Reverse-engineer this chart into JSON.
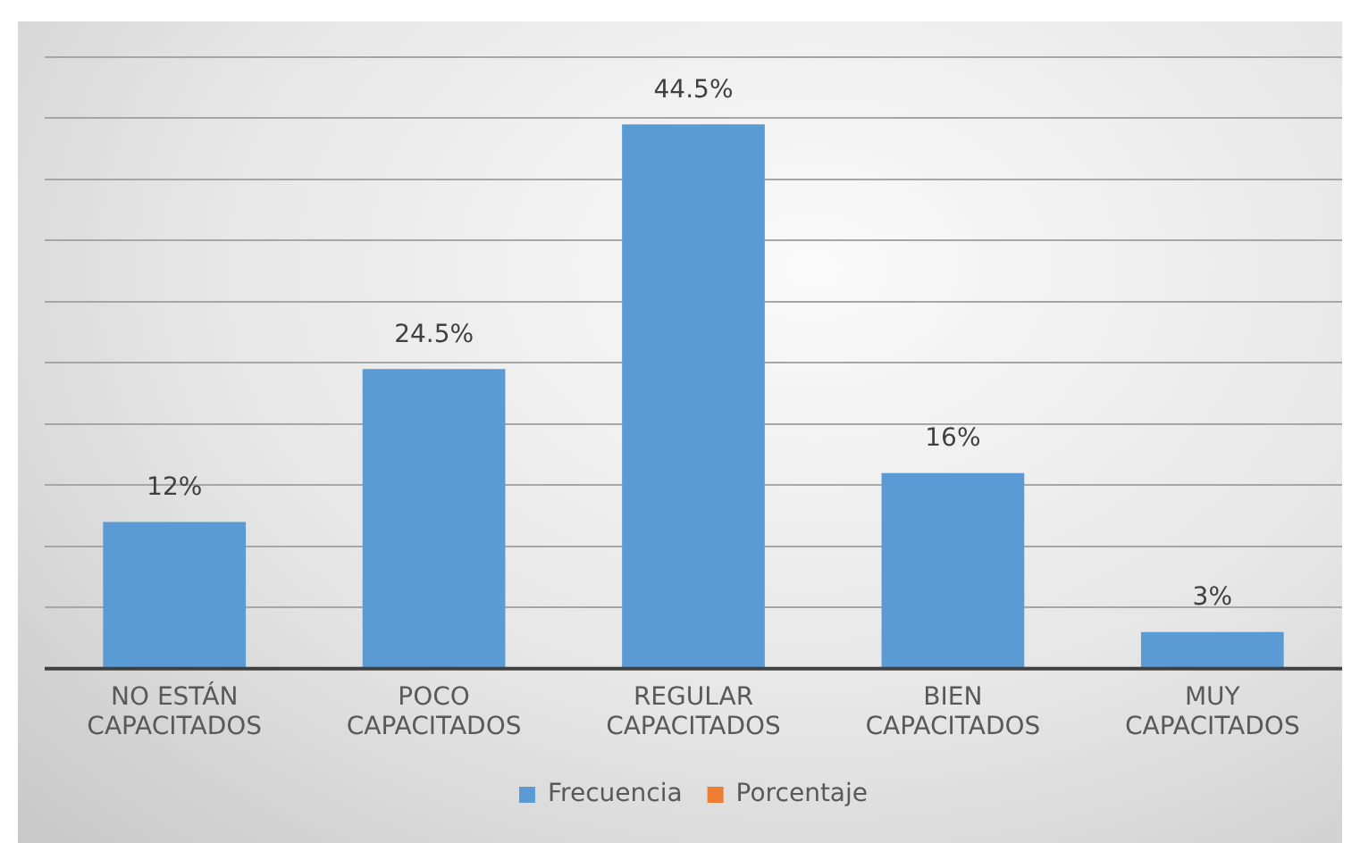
{
  "chart_data": {
    "type": "bar",
    "categories": [
      "NO ESTÁN CAPACITADOS",
      "POCO CAPACITADOS",
      "REGULAR CAPACITADOS",
      "BIEN CAPACITADOS",
      "MUY CAPACITADOS"
    ],
    "series": [
      {
        "name": "Frecuencia",
        "color": "#5b9bd5",
        "values": [
          12,
          24.5,
          44.5,
          16,
          3
        ],
        "value_labels": [
          "12%",
          "24.5%",
          "44.5%",
          "16%",
          "3%"
        ]
      },
      {
        "name": "Porcentaje",
        "color": "#ed7d31",
        "values": [
          null,
          null,
          null,
          null,
          null
        ]
      }
    ],
    "grid": "y",
    "legend": "bottom",
    "tick_labels": "x"
  }
}
